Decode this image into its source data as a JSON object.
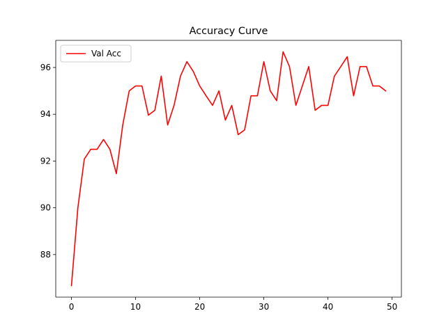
{
  "chart_data": {
    "type": "line",
    "title": "Accuracy Curve",
    "xlabel": "",
    "ylabel": "",
    "xlim": [
      -2.45,
      51.45
    ],
    "ylim": [
      86.18,
      97.16
    ],
    "xticks": [
      0,
      10,
      20,
      30,
      40,
      50
    ],
    "yticks": [
      88,
      90,
      92,
      94,
      96
    ],
    "grid": false,
    "legend": {
      "position": "top-left",
      "entries": [
        "Val Acc"
      ]
    },
    "series": [
      {
        "name": "Val Acc",
        "color": "#ff0000",
        "x": [
          0,
          1,
          2,
          3,
          4,
          5,
          6,
          7,
          8,
          9,
          10,
          11,
          12,
          13,
          14,
          15,
          16,
          17,
          18,
          19,
          20,
          21,
          22,
          23,
          24,
          25,
          26,
          27,
          28,
          29,
          30,
          31,
          32,
          33,
          34,
          35,
          36,
          37,
          38,
          39,
          40,
          41,
          42,
          43,
          44,
          45,
          46,
          47,
          48,
          49
        ],
        "values": [
          86.67,
          90.0,
          92.08,
          92.5,
          92.5,
          92.92,
          92.5,
          91.46,
          93.54,
          95.0,
          95.21,
          95.21,
          93.96,
          94.17,
          95.63,
          93.54,
          94.38,
          95.63,
          96.25,
          95.83,
          95.21,
          94.79,
          94.38,
          95.0,
          93.75,
          94.38,
          93.13,
          93.33,
          94.79,
          94.79,
          96.25,
          95.0,
          94.58,
          96.67,
          96.04,
          94.38,
          95.21,
          96.04,
          94.17,
          94.38,
          94.38,
          95.63,
          96.04,
          96.46,
          94.79,
          96.04,
          96.04,
          95.21,
          95.21,
          95.0
        ]
      }
    ]
  }
}
